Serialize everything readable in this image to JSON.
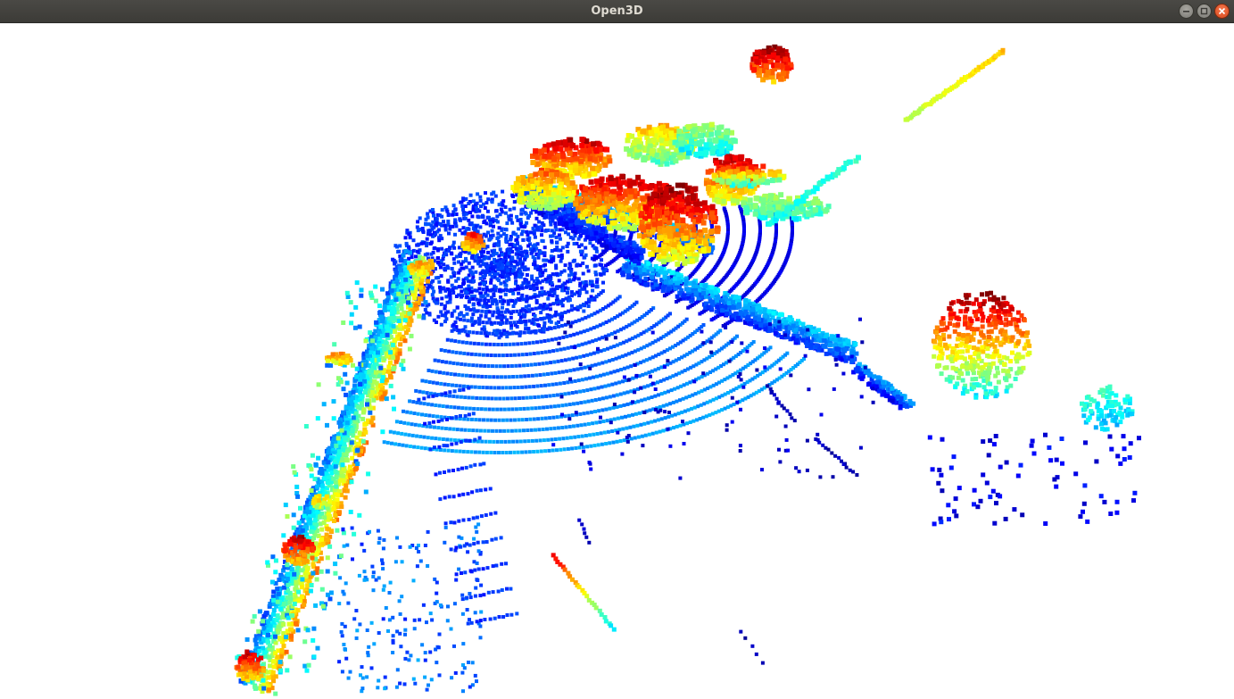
{
  "window": {
    "title": "Open3D",
    "buttons": {
      "minimize": "minimize-icon",
      "maximize": "maximize-icon",
      "close": "close-icon"
    }
  },
  "viewport": {
    "background": "#ffffff",
    "colormap": "jet"
  }
}
